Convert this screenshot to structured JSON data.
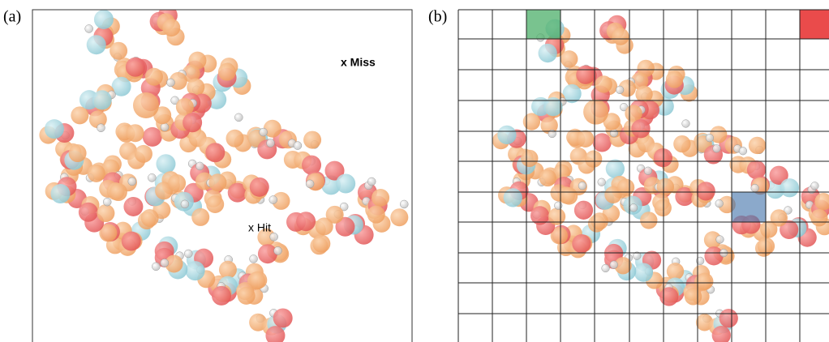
{
  "panels": [
    {
      "label": "(a)",
      "annotations": [
        "x Miss",
        "x Hit"
      ]
    },
    {
      "label": "(b)"
    }
  ]
}
